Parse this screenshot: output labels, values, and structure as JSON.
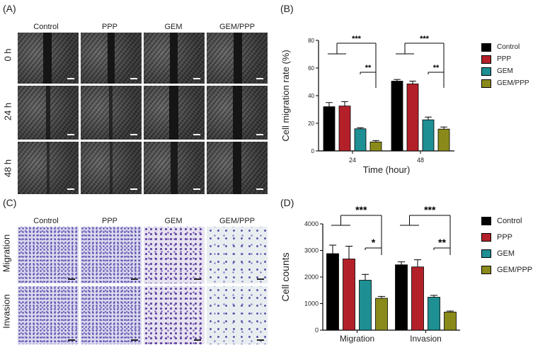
{
  "panel_a": {
    "letter": "(A)",
    "columns": [
      "Control",
      "PPP",
      "GEM",
      "GEM/PPP"
    ],
    "rows": [
      "0 h",
      "24 h",
      "48 h"
    ]
  },
  "panel_c": {
    "letter": "(C)",
    "columns": [
      "Control",
      "PPP",
      "GEM",
      "GEM/PPP"
    ],
    "rows": [
      "Migration",
      "Invasion"
    ]
  },
  "legend": [
    {
      "name": "Control",
      "color": "#000000"
    },
    {
      "name": "PPP",
      "color": "#b3202a"
    },
    {
      "name": "GEM",
      "color": "#1e8f93"
    },
    {
      "name": "GEM/PPP",
      "color": "#8a8a1a"
    }
  ],
  "chart_data": [
    {
      "letter": "(B)",
      "type": "bar",
      "categories": [
        "24",
        "48"
      ],
      "series": [
        {
          "name": "Control",
          "values": [
            32,
            50.5
          ],
          "errors": [
            3,
            1.2
          ]
        },
        {
          "name": "PPP",
          "values": [
            32.5,
            48.5
          ],
          "errors": [
            3.2,
            2
          ]
        },
        {
          "name": "GEM",
          "values": [
            16,
            22.5
          ],
          "errors": [
            0.8,
            2
          ]
        },
        {
          "name": "GEM/PPP",
          "values": [
            6.5,
            15.8
          ],
          "errors": [
            1,
            1.5
          ]
        }
      ],
      "xlabel": "Time (hour)",
      "ylabel": "Cell migration rate (%)",
      "ylim": [
        0,
        80
      ],
      "yticks": [
        "0",
        "20",
        "40",
        "60",
        "80"
      ],
      "significance": [
        {
          "group": 0,
          "label": "***"
        },
        {
          "group": 0,
          "label": "**"
        },
        {
          "group": 1,
          "label": "***"
        },
        {
          "group": 1,
          "label": "**"
        }
      ]
    },
    {
      "letter": "(D)",
      "type": "bar",
      "categories": [
        "Migration",
        "Invasion"
      ],
      "series": [
        {
          "name": "Control",
          "values": [
            2880,
            2460
          ],
          "errors": [
            320,
            110
          ]
        },
        {
          "name": "PPP",
          "values": [
            2680,
            2380
          ],
          "errors": [
            480,
            270
          ]
        },
        {
          "name": "GEM",
          "values": [
            1880,
            1240
          ],
          "errors": [
            220,
            70
          ]
        },
        {
          "name": "GEM/PPP",
          "values": [
            1200,
            680
          ],
          "errors": [
            70,
            40
          ]
        }
      ],
      "xlabel": "",
      "ylabel": "Cell counts",
      "ylim": [
        0,
        4000
      ],
      "yticks": [
        "0",
        "1000",
        "2000",
        "3000",
        "4000"
      ],
      "significance": [
        {
          "group": 0,
          "label": "***"
        },
        {
          "group": 0,
          "label": "*"
        },
        {
          "group": 1,
          "label": "***"
        },
        {
          "group": 1,
          "label": "**"
        }
      ]
    }
  ]
}
